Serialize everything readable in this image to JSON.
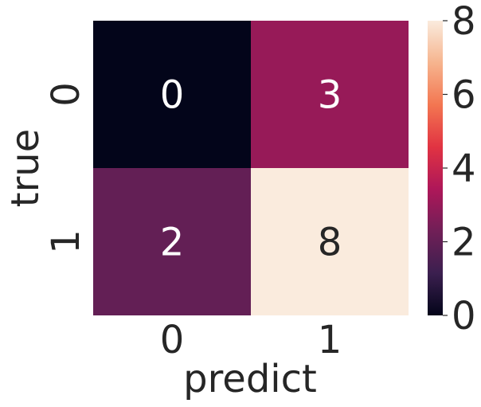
{
  "chart_data": {
    "type": "heatmap",
    "xlabel": "predict",
    "ylabel": "true",
    "x_categories": [
      "0",
      "1"
    ],
    "y_categories": [
      "0",
      "1"
    ],
    "values": [
      [
        0,
        3
      ],
      [
        2,
        8
      ]
    ],
    "annotations": [
      [
        "0",
        "3"
      ],
      [
        "2",
        "8"
      ]
    ],
    "colorbar": {
      "min": 0,
      "max": 8,
      "ticks": [
        "0",
        "2",
        "4",
        "6",
        "8"
      ],
      "colormap": "rocket",
      "stops": [
        "#03051a",
        "#3b1f4f",
        "#701f57",
        "#ae1759",
        "#e13342",
        "#f37651",
        "#f6b48e",
        "#faebdd"
      ]
    },
    "annotation_colors": {
      "dark_cells": "#ffffff",
      "light_cells": "#262626"
    },
    "text_color": "#262626"
  }
}
